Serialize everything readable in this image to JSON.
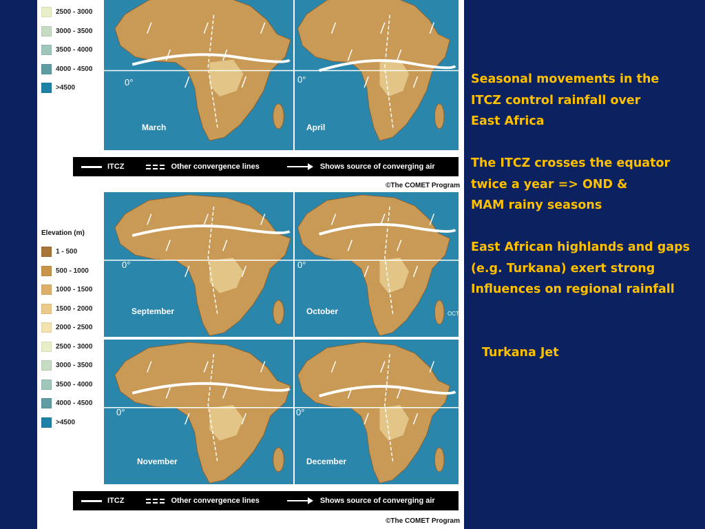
{
  "legend_top": {
    "items": [
      {
        "label": "2500 - 3000",
        "color": "#e8efc8"
      },
      {
        "label": "3000 - 3500",
        "color": "#c6dcc2"
      },
      {
        "label": "3500 - 4000",
        "color": "#9ec6bb"
      },
      {
        "label": "4000 - 4500",
        "color": "#5f9ca3"
      },
      {
        "label": ">4500",
        "color": "#1e81a8"
      }
    ]
  },
  "legend_bottom": {
    "title": "Elevation (m)",
    "items": [
      {
        "label": "1 - 500",
        "color": "#a8743a"
      },
      {
        "label": "500 - 1000",
        "color": "#c8944c"
      },
      {
        "label": "1000 - 1500",
        "color": "#dcb068"
      },
      {
        "label": "1500 - 2000",
        "color": "#ecca8a"
      },
      {
        "label": "2000 - 2500",
        "color": "#f2e2b0"
      },
      {
        "label": "2500 - 3000",
        "color": "#e8efc8"
      },
      {
        "label": "3000 - 3500",
        "color": "#c6dcc2"
      },
      {
        "label": "3500 - 4000",
        "color": "#9ec6bb"
      },
      {
        "label": "4000 - 4500",
        "color": "#5f9ca3"
      },
      {
        "label": ">4500",
        "color": "#1e81a8"
      }
    ]
  },
  "panels": {
    "march": "March",
    "april": "April",
    "september": "September",
    "october": "October",
    "november": "November",
    "december": "December",
    "equator": "0°",
    "oct_tag": "OCT"
  },
  "key": {
    "itcz": "ITCZ",
    "other_lines": "Other convergence lines",
    "source": "Shows source of converging air"
  },
  "copyright": "©The COMET Program",
  "text": {
    "para1": [
      "Seasonal movements in the",
      "ITCZ control rainfall over",
      "East Africa"
    ],
    "para2": [
      "The ITCZ crosses the equator",
      "twice a year => OND &",
      "MAM rainy seasons"
    ],
    "para3": [
      "East African highlands and gaps",
      "(e.g. Turkana) exert strong",
      "Influences on regional rainfall"
    ],
    "turkana": "Turkana Jet"
  },
  "colors": {
    "ocean": "#2a86ab",
    "land": "#c99a55",
    "text_accent": "#ffc000",
    "background": "#0b2160"
  }
}
